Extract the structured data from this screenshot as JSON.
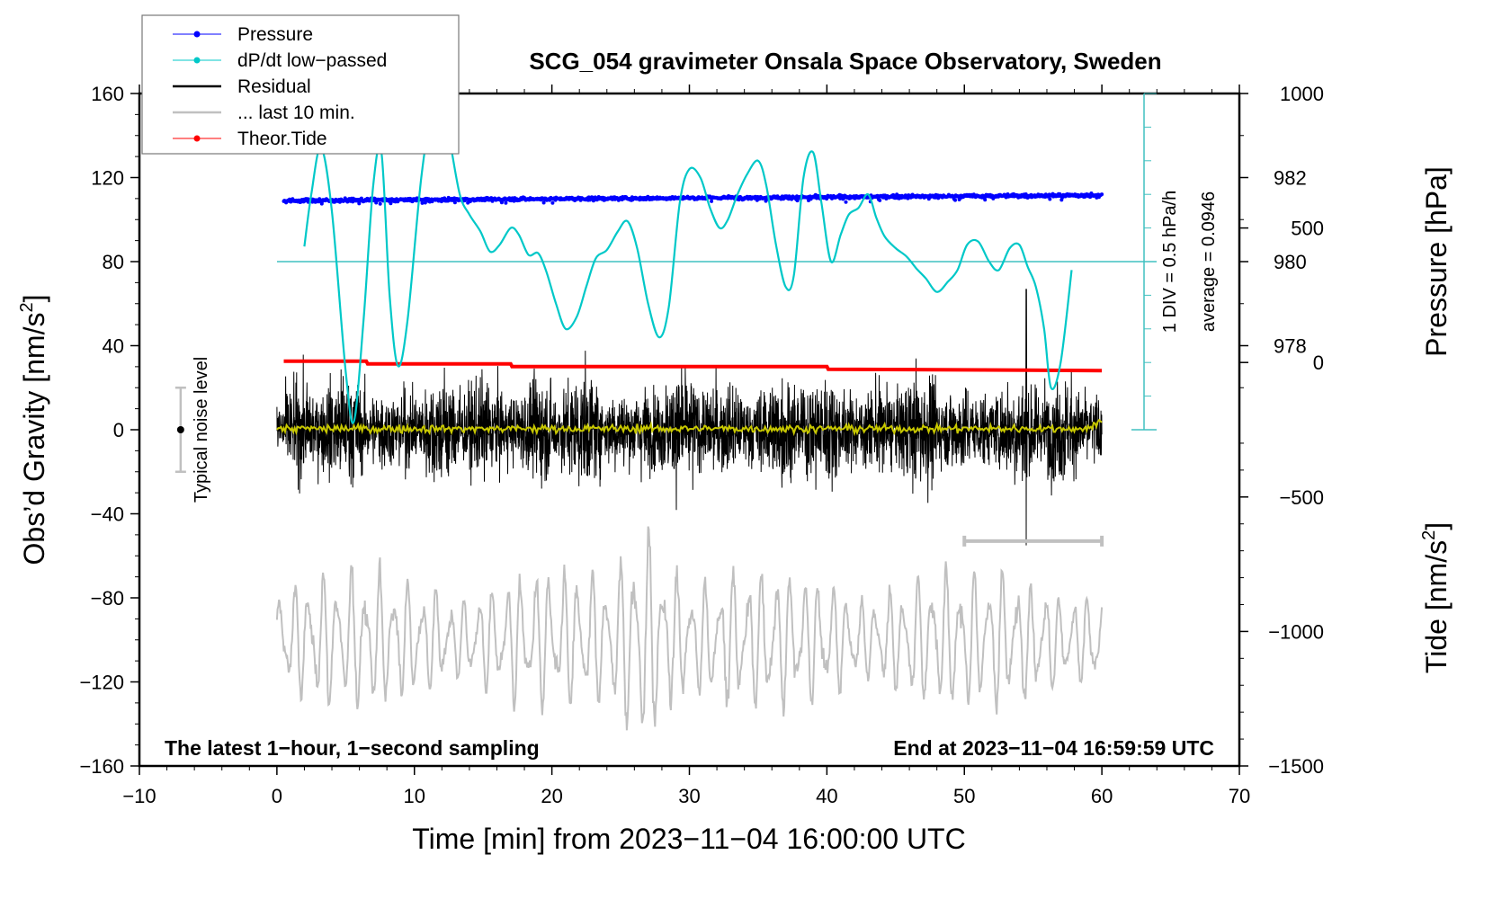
{
  "chart_data": {
    "type": "line",
    "title": "SCG_054 gravimeter Onsala Space Observatory, Sweden",
    "xlabel": "Time [min] from 2023−11−04 16:00:00 UTC",
    "ylabel_left": "Obs’d Gravity [nm/s²]",
    "ylabel_left_base": "Obs’d Gravity [nm/s",
    "ylabel_left_sup": "2",
    "ylabel_left_close": "]",
    "ylabel_right_pressure": "Pressure [hPa]",
    "ylabel_right_tide_base": "Tide [nm/s",
    "ylabel_right_tide_sup": "2",
    "ylabel_right_tide_close": "]",
    "xlim": [
      -10,
      70
    ],
    "ylim_left": [
      -160,
      160
    ],
    "ylim_pressure_visible": [
      978,
      982
    ],
    "ylim_tide": [
      -1500,
      1000
    ],
    "grid": false,
    "legend_position": "top-left",
    "x_ticks": [
      -10,
      0,
      10,
      20,
      30,
      40,
      50,
      60,
      70
    ],
    "x_tick_labels": [
      "−10",
      "0",
      "10",
      "20",
      "30",
      "40",
      "50",
      "60",
      "70"
    ],
    "y_left_ticks": [
      160,
      120,
      80,
      40,
      0,
      -40,
      -80,
      -120,
      -160
    ],
    "y_left_tick_labels": [
      "160",
      "120",
      "80",
      "40",
      "0",
      "−40",
      "−80",
      "−120",
      "−160"
    ],
    "pressure_ticks": [
      982,
      980,
      978
    ],
    "pressure_tick_labels": [
      "982",
      "980",
      "978"
    ],
    "tide_ticks": [
      1000,
      500,
      0,
      -500,
      -1000,
      -1500
    ],
    "tide_tick_labels": [
      "1000",
      "500",
      "0",
      "−500",
      "−1000",
      "−1500"
    ],
    "legend": [
      {
        "label": "Pressure",
        "color": "#0000ff",
        "marker": true
      },
      {
        "label": "dP/dt low−passed",
        "color": "#00c8c8",
        "marker": true
      },
      {
        "label": "Residual",
        "color": "#000000",
        "marker": false
      },
      {
        "label": "... last 10 min.",
        "color": "#c0c0c0",
        "marker": false
      },
      {
        "label": "Theor.Tide",
        "color": "#ff0000",
        "marker": true
      }
    ],
    "annotations": {
      "bottom_left": "The latest 1−hour, 1−second sampling",
      "bottom_right": "End at 2023−11−04 16:59:59 UTC",
      "dpdt_scale": "1 DIV = 0.5 hPa/h",
      "dpdt_average": "average = 0.0946",
      "noise_label": "Typical noise level",
      "noise_level": {
        "x": -7,
        "center": 0,
        "half_range": 20
      },
      "last10_bar": {
        "x_start": 50,
        "x_end": 60,
        "y": -53
      }
    },
    "series": [
      {
        "name": "Pressure",
        "color": "#0000ff",
        "axis": "pressure",
        "x_range": [
          0.5,
          60.0
        ],
        "start_hPa": 981.45,
        "end_hPa": 981.58,
        "scatter_hPa": 0.06
      },
      {
        "name": "dP/dt low-passed",
        "color": "#00c8c8",
        "axis": "dpdt_div",
        "zero_level_gravity_units": 80,
        "div_hPa_per_h": 0.5,
        "x": [
          2.0,
          2.5,
          3.2,
          4.0,
          5.0,
          5.6,
          6.3,
          7.0,
          7.6,
          8.2,
          8.8,
          9.5,
          10.5,
          11.3,
          11.9,
          12.5,
          13.3,
          14.0,
          14.8,
          15.5,
          16.2,
          17.0,
          17.6,
          18.3,
          19.0,
          19.6,
          20.3,
          21.0,
          21.8,
          22.5,
          23.2,
          24.0,
          24.8,
          25.5,
          26.2,
          27.0,
          27.8,
          28.5,
          29.3,
          30.0,
          30.8,
          31.5,
          32.2,
          32.8,
          33.5,
          34.2,
          35.0,
          35.6,
          36.3,
          37.0,
          37.6,
          38.3,
          39.0,
          39.6,
          40.3,
          41.0,
          41.6,
          42.3,
          43.0,
          43.6,
          44.2,
          45.0,
          45.8,
          46.5,
          47.2,
          48.0,
          48.8,
          49.5,
          50.2,
          51.0,
          51.8,
          52.5,
          53.3,
          54.0,
          54.6,
          55.2,
          55.8,
          56.3,
          57.0,
          57.8
        ],
        "y": [
          0.9,
          4.0,
          6.8,
          3.0,
          -6.5,
          -9.5,
          -3.5,
          4.5,
          6.5,
          -2.0,
          -6.2,
          -3.5,
          5.0,
          9.0,
          9.2,
          7.5,
          4.0,
          2.8,
          1.8,
          0.6,
          1.0,
          2.0,
          1.6,
          0.4,
          0.5,
          -0.6,
          -2.5,
          -4.0,
          -3.3,
          -1.5,
          0.2,
          0.7,
          1.8,
          2.4,
          0.8,
          -2.5,
          -4.5,
          -2.7,
          3.5,
          5.5,
          5.0,
          3.2,
          2.0,
          2.5,
          4.0,
          5.2,
          6.0,
          4.5,
          1.0,
          -1.5,
          -0.8,
          5.0,
          6.5,
          3.5,
          0.0,
          1.6,
          2.8,
          3.2,
          4.0,
          2.6,
          1.5,
          0.8,
          0.3,
          -0.4,
          -1.0,
          -1.8,
          -1.2,
          -0.5,
          1.0,
          1.2,
          0.0,
          -0.5,
          0.8,
          1.0,
          -0.3,
          -1.5,
          -4.0,
          -7.5,
          -6.0,
          -0.5
        ]
      },
      {
        "name": "Residual",
        "color": "#000000",
        "axis": "left",
        "x_range": [
          0,
          60
        ],
        "mean": 0,
        "typical_amplitude": 20,
        "peak_max": 67,
        "peak_min": -55
      },
      {
        "name": "Residual smoothed",
        "color": "#c8c800",
        "axis": "left",
        "x_range": [
          0,
          60
        ],
        "mean": 0.5
      },
      {
        "name": "... last 10 min.",
        "color": "#c0c0c0",
        "axis": "left",
        "x_range": [
          0,
          60
        ],
        "center": -100,
        "typical_amplitude": 25,
        "peak_max": -33,
        "peak_min": -153
      },
      {
        "name": "Theor.Tide",
        "color": "#ff0000",
        "axis": "tide",
        "x": [
          0.5,
          6.5,
          6.6,
          17.0,
          17.1,
          40.0,
          40.1,
          60.0
        ],
        "y": [
          5,
          5,
          -5,
          -5,
          -15,
          -15,
          -25,
          -30
        ]
      }
    ]
  }
}
